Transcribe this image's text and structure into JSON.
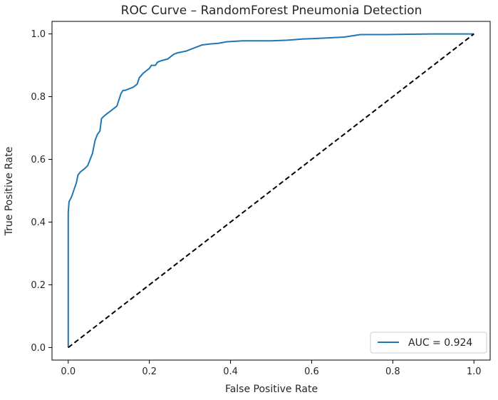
{
  "chart_data": {
    "type": "line",
    "title": "ROC Curve – RandomForest Pneumonia Detection",
    "xlabel": "False Positive Rate",
    "ylabel": "True Positive Rate",
    "xlim": [
      -0.04,
      1.04
    ],
    "ylim": [
      -0.04,
      1.04
    ],
    "xticks": [
      "0.0",
      "0.2",
      "0.4",
      "0.6",
      "0.8",
      "1.0"
    ],
    "yticks": [
      "0.0",
      "0.2",
      "0.4",
      "0.6",
      "0.8",
      "1.0"
    ],
    "grid": false,
    "legend_position": "lower-right",
    "series": [
      {
        "name": "AUC = 0.924",
        "color": "#1f77b4",
        "style": "solid",
        "x": [
          0.0,
          0.0,
          0.0,
          0.002,
          0.004,
          0.008,
          0.012,
          0.016,
          0.02,
          0.024,
          0.03,
          0.04,
          0.048,
          0.054,
          0.06,
          0.066,
          0.072,
          0.078,
          0.082,
          0.09,
          0.1,
          0.11,
          0.12,
          0.13,
          0.135,
          0.14,
          0.15,
          0.16,
          0.17,
          0.175,
          0.185,
          0.19,
          0.2,
          0.205,
          0.215,
          0.22,
          0.23,
          0.245,
          0.26,
          0.27,
          0.29,
          0.3,
          0.32,
          0.33,
          0.35,
          0.37,
          0.39,
          0.43,
          0.45,
          0.5,
          0.54,
          0.58,
          0.6,
          0.65,
          0.68,
          0.7,
          0.72,
          0.78,
          0.84,
          0.9,
          0.96,
          1.0
        ],
        "y": [
          0.0,
          0.37,
          0.43,
          0.465,
          0.47,
          0.48,
          0.495,
          0.51,
          0.525,
          0.55,
          0.56,
          0.57,
          0.58,
          0.6,
          0.62,
          0.66,
          0.68,
          0.69,
          0.73,
          0.74,
          0.75,
          0.76,
          0.77,
          0.81,
          0.82,
          0.82,
          0.825,
          0.83,
          0.84,
          0.86,
          0.875,
          0.88,
          0.89,
          0.9,
          0.9,
          0.91,
          0.915,
          0.92,
          0.935,
          0.94,
          0.945,
          0.95,
          0.96,
          0.965,
          0.968,
          0.97,
          0.975,
          0.978,
          0.978,
          0.978,
          0.98,
          0.984,
          0.985,
          0.988,
          0.99,
          0.994,
          0.998,
          0.998,
          0.999,
          1.0,
          1.0,
          1.0
        ]
      },
      {
        "color": "#000000",
        "style": "dashed",
        "x": [
          0.0,
          1.0
        ],
        "y": [
          0.0,
          1.0
        ]
      }
    ],
    "legend": [
      {
        "label": "AUC = 0.924",
        "color": "#1f77b4"
      }
    ]
  }
}
